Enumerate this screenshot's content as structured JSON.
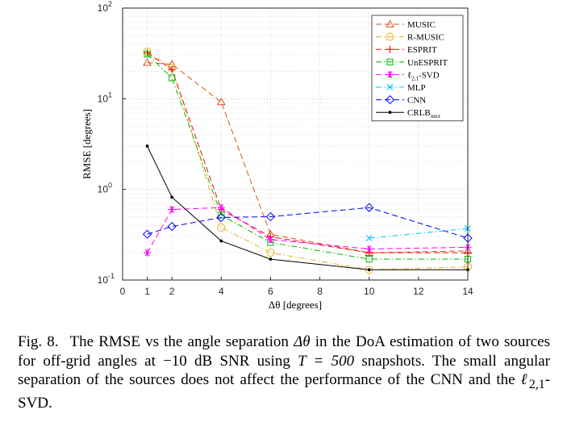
{
  "chart_data": {
    "type": "line",
    "title": "",
    "xlabel": "Δθ [degrees]",
    "ylabel": "RMSE [degrees]",
    "xlim": [
      0,
      14
    ],
    "ylim": [
      0.1,
      100
    ],
    "yscale": "log",
    "xticks": [
      0,
      1,
      2,
      4,
      6,
      8,
      10,
      12,
      14
    ],
    "yticks": [
      {
        "value": 0.1,
        "base": "10",
        "exp": "-1"
      },
      {
        "value": 1,
        "base": "10",
        "exp": "0"
      },
      {
        "value": 10,
        "base": "10",
        "exp": "1"
      },
      {
        "value": 100,
        "base": "10",
        "exp": "2"
      }
    ],
    "grid": true,
    "legend_position": "top-right",
    "series": [
      {
        "name": "MUSIC",
        "color": "#d95319",
        "dash": "dashed",
        "marker": "triangle",
        "x": [
          1,
          2,
          4,
          6,
          10,
          14
        ],
        "y": [
          25,
          24,
          9.2,
          0.32,
          0.2,
          0.21
        ]
      },
      {
        "name": "R-MUSIC",
        "color": "#edb120",
        "dash": "dashdot",
        "marker": "circle",
        "x": [
          1,
          2,
          4,
          6,
          10,
          14
        ],
        "y": [
          33,
          22,
          0.38,
          0.2,
          0.13,
          0.14
        ]
      },
      {
        "name": "ESPRIT",
        "color": "#ff0000",
        "dash": "dashed",
        "marker": "plus",
        "x": [
          1,
          2,
          4,
          6,
          10,
          14
        ],
        "y": [
          32,
          21,
          0.6,
          0.3,
          0.2,
          0.2
        ]
      },
      {
        "name": "UnESPRIT",
        "color": "#00bb00",
        "dash": "dashdot",
        "marker": "square",
        "x": [
          1,
          2,
          4,
          6,
          10,
          14
        ],
        "y": [
          31,
          17,
          0.52,
          0.26,
          0.17,
          0.17
        ]
      },
      {
        "name": "ℓ2,1-SVD",
        "name_main": "ℓ",
        "name_sub": "2,1",
        "name_rest": "-SVD",
        "color": "#ff00ff",
        "dash": "dashed",
        "marker": "asterisk",
        "x": [
          1,
          2,
          4,
          6,
          10,
          14
        ],
        "y": [
          0.2,
          0.6,
          0.63,
          0.28,
          0.22,
          0.23
        ]
      },
      {
        "name": "MLP",
        "color": "#00c8ff",
        "dash": "dashdot",
        "marker": "x",
        "x": [
          10,
          14
        ],
        "y": [
          0.29,
          0.37
        ]
      },
      {
        "name": "CNN",
        "color": "#0000ff",
        "dash": "dashed",
        "marker": "diamond",
        "x": [
          1,
          2,
          4,
          6,
          10,
          14
        ],
        "y": [
          0.32,
          0.39,
          0.49,
          0.5,
          0.63,
          0.29
        ]
      },
      {
        "name": "CRLBuncr",
        "name_main": "CRLB",
        "name_sub": "uncr",
        "name_rest": "",
        "color": "#000000",
        "dash": "solid",
        "marker": "dot",
        "x": [
          1,
          2,
          4,
          6,
          10,
          14
        ],
        "y": [
          3.0,
          0.82,
          0.27,
          0.17,
          0.13,
          0.13
        ]
      }
    ]
  },
  "caption": {
    "label": "Fig. 8.",
    "part1": "The RMSE vs the angle separation ",
    "delta_theta": "Δθ",
    "part2": " in the DoA estimation of two sources for off-grid angles at ",
    "snr": "−10",
    "part3": " dB SNR using ",
    "snapshots": "T = 500",
    "part4": " snapshots. The small angular separation of the sources does not affect the performance of the CNN and the ",
    "l21": "ℓ",
    "l21_sub": "2,1",
    "part5": "-SVD."
  }
}
